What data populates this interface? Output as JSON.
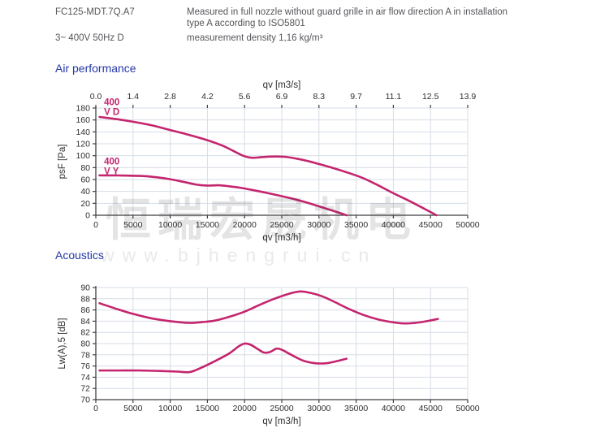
{
  "header": {
    "model": "FC125-MDT.7Q.A7",
    "power": "3~ 400V 50Hz D",
    "description_line1": "Measured in full nozzle without guard grille in air flow direction A in installation",
    "description_line2": "type A according to ISO5801",
    "density": "measurement density 1,16 kg/m³"
  },
  "sections": {
    "air_performance": "Air performance",
    "acoustics": "Acoustics"
  },
  "watermark": {
    "cn_text": "恒瑞宏晟机电",
    "url_text": "www.bjhengrui.cn"
  },
  "colors": {
    "curve": "#C4256E",
    "heading_blue": "#2438A8",
    "grid": "#D6DDE6",
    "axis": "#3F3F42"
  },
  "chart_data": [
    {
      "type": "line",
      "title": "Air performance",
      "xlabel": "qv [m3/h]",
      "xlabel_top": "qv [m3/s]",
      "ylabel": "psF [Pa]",
      "xlim": [
        0,
        50000
      ],
      "ylim": [
        0,
        180
      ],
      "grid": true,
      "xticks": [
        0,
        5000,
        10000,
        15000,
        20000,
        25000,
        30000,
        35000,
        40000,
        45000,
        50000
      ],
      "xticks_top": [
        "0.0",
        "1.4",
        "2.8",
        "4.2",
        "5.6",
        "6.9",
        "8.3",
        "9.7",
        "11.1",
        "12.5",
        "13.9"
      ],
      "yticks": [
        0,
        20,
        40,
        60,
        80,
        100,
        120,
        140,
        160,
        180
      ],
      "series": [
        {
          "name": "400 V D",
          "label": {
            "lines": [
              "400",
              "V D"
            ],
            "x": 1100,
            "y": 185
          },
          "points": [
            [
              500,
              165
            ],
            [
              3000,
              161
            ],
            [
              5000,
              157
            ],
            [
              7500,
              151
            ],
            [
              10000,
              143
            ],
            [
              12500,
              135
            ],
            [
              15000,
              126
            ],
            [
              17000,
              117
            ],
            [
              18500,
              108
            ],
            [
              19800,
              100
            ],
            [
              21000,
              96.5
            ],
            [
              22500,
              97.8
            ],
            [
              24000,
              98.6
            ],
            [
              25500,
              98
            ],
            [
              27000,
              95
            ],
            [
              28500,
              91
            ],
            [
              30000,
              86
            ],
            [
              32000,
              79
            ],
            [
              34000,
              71
            ],
            [
              36000,
              62
            ],
            [
              38000,
              50
            ],
            [
              40000,
              37
            ],
            [
              42000,
              25
            ],
            [
              44000,
              12
            ],
            [
              45800,
              0
            ]
          ]
        },
        {
          "name": "400 V Y",
          "label": {
            "lines": [
              "400",
              "V Y"
            ],
            "x": 1100,
            "y": 85
          },
          "points": [
            [
              500,
              67
            ],
            [
              3000,
              66.8
            ],
            [
              6000,
              66
            ],
            [
              8000,
              64
            ],
            [
              10000,
              60.5
            ],
            [
              12000,
              55.5
            ],
            [
              13500,
              51.5
            ],
            [
              15000,
              49.8
            ],
            [
              16500,
              50.3
            ],
            [
              18000,
              48.5
            ],
            [
              19500,
              46
            ],
            [
              21000,
              42.5
            ],
            [
              23000,
              37.5
            ],
            [
              25000,
              32
            ],
            [
              27000,
              26
            ],
            [
              29000,
              19
            ],
            [
              31000,
              11
            ],
            [
              33000,
              3
            ],
            [
              33700,
              0
            ]
          ]
        }
      ]
    },
    {
      "type": "line",
      "title": "Acoustics",
      "xlabel": "qv [m3/h]",
      "ylabel": "Lw(A),5 [dB]",
      "xlim": [
        0,
        50000
      ],
      "ylim": [
        70,
        90
      ],
      "grid": true,
      "xticks": [
        0,
        5000,
        10000,
        15000,
        20000,
        25000,
        30000,
        35000,
        40000,
        45000,
        50000
      ],
      "yticks": [
        70,
        72,
        74,
        76,
        78,
        80,
        82,
        84,
        86,
        88,
        90
      ],
      "series": [
        {
          "name": "400 V D",
          "points": [
            [
              500,
              87.2
            ],
            [
              3000,
              86.1
            ],
            [
              5000,
              85.3
            ],
            [
              7500,
              84.5
            ],
            [
              10000,
              84.0
            ],
            [
              12500,
              83.7
            ],
            [
              14000,
              83.8
            ],
            [
              16000,
              84.1
            ],
            [
              18000,
              84.8
            ],
            [
              20000,
              85.7
            ],
            [
              22000,
              86.9
            ],
            [
              24000,
              88.0
            ],
            [
              26000,
              88.9
            ],
            [
              27500,
              89.3
            ],
            [
              29000,
              89.0
            ],
            [
              30500,
              88.4
            ],
            [
              32000,
              87.5
            ],
            [
              34000,
              86.2
            ],
            [
              36000,
              85.1
            ],
            [
              38000,
              84.3
            ],
            [
              40000,
              83.8
            ],
            [
              41500,
              83.6
            ],
            [
              43000,
              83.7
            ],
            [
              44500,
              84.0
            ],
            [
              46000,
              84.4
            ]
          ]
        },
        {
          "name": "400 V Y",
          "points": [
            [
              500,
              75.2
            ],
            [
              3000,
              75.2
            ],
            [
              6000,
              75.2
            ],
            [
              9000,
              75.1
            ],
            [
              11000,
              75.0
            ],
            [
              12500,
              74.9
            ],
            [
              13500,
              75.3
            ],
            [
              15000,
              76.2
            ],
            [
              16500,
              77.2
            ],
            [
              18000,
              78.3
            ],
            [
              19200,
              79.5
            ],
            [
              20000,
              80.0
            ],
            [
              20800,
              79.8
            ],
            [
              21800,
              79.0
            ],
            [
              22600,
              78.4
            ],
            [
              23400,
              78.5
            ],
            [
              24300,
              79.1
            ],
            [
              25000,
              78.9
            ],
            [
              26000,
              78.2
            ],
            [
              27000,
              77.5
            ],
            [
              28000,
              76.9
            ],
            [
              29500,
              76.5
            ],
            [
              31000,
              76.5
            ],
            [
              32500,
              76.9
            ],
            [
              33700,
              77.3
            ]
          ]
        }
      ]
    }
  ]
}
